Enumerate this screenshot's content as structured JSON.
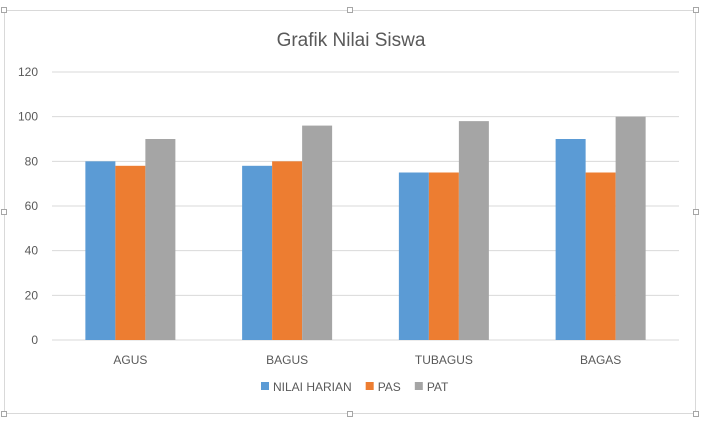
{
  "chart_data": {
    "type": "bar",
    "title": "Grafik Nilai Siswa",
    "xlabel": "",
    "ylabel": "",
    "categories": [
      "AGUS",
      "BAGUS",
      "TUBAGUS",
      "BAGAS"
    ],
    "series": [
      {
        "name": "NILAI HARIAN",
        "values": [
          80,
          78,
          75,
          90
        ],
        "color": "#5b9bd5"
      },
      {
        "name": "PAS",
        "values": [
          78,
          80,
          75,
          75
        ],
        "color": "#ed7d31"
      },
      {
        "name": "PAT",
        "values": [
          90,
          96,
          98,
          100
        ],
        "color": "#a5a5a5"
      }
    ],
    "ylim": [
      0,
      120
    ],
    "yticks": [
      0,
      20,
      40,
      60,
      80,
      100,
      120
    ],
    "grid": true,
    "legend_position": "bottom"
  }
}
